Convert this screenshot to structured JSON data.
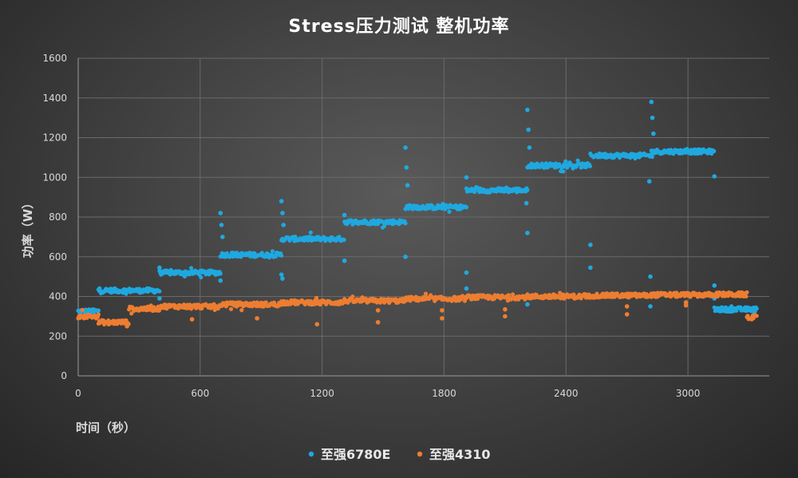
{
  "chart_data": {
    "type": "scatter",
    "title": "Stress压力测试  整机功率",
    "xlabel": "时间（秒）",
    "ylabel": "功率（W）",
    "xlim": [
      0,
      3400
    ],
    "ylim": [
      0,
      1600
    ],
    "xticks": [
      0,
      600,
      1200,
      1800,
      2400,
      3000
    ],
    "yticks": [
      0,
      200,
      400,
      600,
      800,
      1000,
      1200,
      1400,
      1600
    ],
    "grid": true,
    "legend_position": "bottom",
    "series": [
      {
        "name": "至强6780E",
        "color": "#1fa8e0",
        "segments": [
          [
            0,
            100,
            325
          ],
          [
            100,
            400,
            430
          ],
          [
            400,
            700,
            520
          ],
          [
            700,
            1000,
            610
          ],
          [
            1000,
            1310,
            690
          ],
          [
            1310,
            1610,
            775
          ],
          [
            1610,
            1910,
            850
          ],
          [
            1910,
            2210,
            935
          ],
          [
            2210,
            2520,
            1060
          ],
          [
            2520,
            2820,
            1110
          ],
          [
            2820,
            3130,
            1130
          ],
          [
            3130,
            3340,
            335
          ]
        ],
        "spikes": [
          [
            105,
            440
          ],
          [
            400,
            545
          ],
          [
            700,
            820
          ],
          [
            705,
            760
          ],
          [
            710,
            700
          ],
          [
            1000,
            880
          ],
          [
            1005,
            820
          ],
          [
            1010,
            760
          ],
          [
            1310,
            810
          ],
          [
            1310,
            580
          ],
          [
            1610,
            1150
          ],
          [
            1615,
            1050
          ],
          [
            1620,
            960
          ],
          [
            1610,
            600
          ],
          [
            1910,
            1000
          ],
          [
            1910,
            520
          ],
          [
            1910,
            440
          ],
          [
            2210,
            1340
          ],
          [
            2215,
            1240
          ],
          [
            2220,
            1150
          ],
          [
            2210,
            720
          ],
          [
            2205,
            870
          ],
          [
            2520,
            660
          ],
          [
            2520,
            545
          ],
          [
            2820,
            1380
          ],
          [
            2825,
            1300
          ],
          [
            2830,
            1220
          ],
          [
            2810,
            980
          ],
          [
            2815,
            500
          ],
          [
            2815,
            350
          ],
          [
            3130,
            1005
          ],
          [
            3130,
            455
          ],
          [
            3130,
            390
          ],
          [
            1000,
            510
          ],
          [
            1005,
            490
          ],
          [
            700,
            480
          ],
          [
            400,
            390
          ],
          [
            2210,
            360
          ],
          [
            1005,
            360
          ]
        ]
      },
      {
        "name": "至强4310",
        "color": "#ed7d31",
        "segments": [
          [
            0,
            100,
            300
          ],
          [
            100,
            250,
            270
          ],
          [
            250,
            400,
            338
          ],
          [
            400,
            700,
            350
          ],
          [
            700,
            1000,
            360
          ],
          [
            1000,
            1310,
            370
          ],
          [
            1310,
            1610,
            378
          ],
          [
            1610,
            1910,
            388
          ],
          [
            1910,
            2210,
            396
          ],
          [
            2210,
            2520,
            400
          ],
          [
            2520,
            2820,
            405
          ],
          [
            2820,
            3130,
            408
          ],
          [
            3130,
            3290,
            410
          ],
          [
            3290,
            3340,
            295
          ]
        ],
        "spikes": [
          [
            560,
            285
          ],
          [
            880,
            290
          ],
          [
            1175,
            260
          ],
          [
            1475,
            270
          ],
          [
            1475,
            330
          ],
          [
            1790,
            290
          ],
          [
            1790,
            330
          ],
          [
            2100,
            300
          ],
          [
            2100,
            335
          ],
          [
            2700,
            310
          ],
          [
            2700,
            350
          ],
          [
            2990,
            355
          ],
          [
            2990,
            370
          ],
          [
            1190,
            360
          ],
          [
            300,
            330
          ],
          [
            240,
            250
          ],
          [
            200,
            270
          ],
          [
            150,
            260
          ]
        ]
      }
    ]
  }
}
